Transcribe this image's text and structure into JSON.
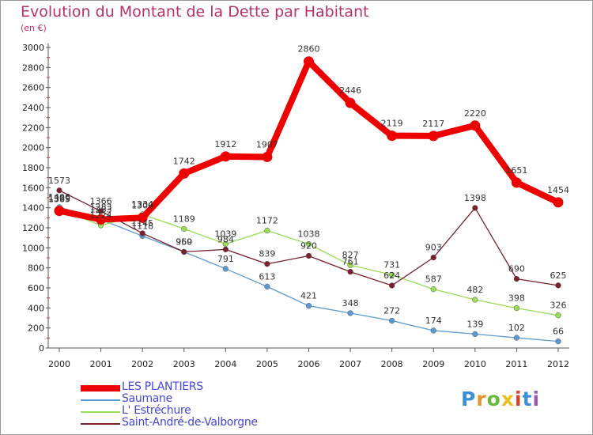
{
  "title": "Evolution du Montant de la Dette par Habitant",
  "subtitle": "(en €)",
  "logo": {
    "letters": [
      "P",
      "r",
      "o",
      "x",
      "i",
      "t",
      "i"
    ],
    "colors": [
      "#3b8fd6",
      "#e8952a",
      "#6bb83a",
      "#e8c020",
      "#d9432e",
      "#3b8fd6",
      "#9b59b6"
    ]
  },
  "chart_data": {
    "type": "line",
    "title": "Evolution du Montant de la Dette par Habitant",
    "ylabel": "(en €)",
    "xlabel": "",
    "x": [
      "2000",
      "2001",
      "2002",
      "2003",
      "2004",
      "2005",
      "2006",
      "2007",
      "2008",
      "2009",
      "2010",
      "2011",
      "2012"
    ],
    "ylim": [
      0,
      3000
    ],
    "yticks": [
      "0",
      "200",
      "400",
      "600",
      "800",
      "1000",
      "1200",
      "1400",
      "1600",
      "1800",
      "2000",
      "2200",
      "2400",
      "2600",
      "2800",
      "3000"
    ],
    "grid": false,
    "legend_position": "bottom-left",
    "series": [
      {
        "name": "LES PLANTIERS",
        "color": "#ee0000",
        "values": [
          1369,
          1283,
          1300,
          1742,
          1912,
          1907,
          2860,
          2446,
          2119,
          2117,
          2220,
          1651,
          1454
        ],
        "labels": [
          "1369",
          "1283",
          "1300",
          "1742",
          "1912",
          "1907",
          "2860",
          "2446",
          "2119",
          "2117",
          "2220",
          "1651",
          "1454"
        ]
      },
      {
        "name": "Saumane",
        "color": "#5b9bd5",
        "values": [
          1406,
          1283,
          1118,
          959,
          791,
          613,
          421,
          348,
          272,
          174,
          139,
          102,
          66
        ],
        "labels": [
          "1406",
          "1283",
          "1118",
          "959",
          "791",
          "613",
          "421",
          "348",
          "272",
          "174",
          "139",
          "102",
          "66"
        ]
      },
      {
        "name": "L' Estréchure",
        "color": "#99dd55",
        "values": [
          1385,
          1224,
          1334,
          1189,
          1039,
          1172,
          1038,
          827,
          731,
          587,
          482,
          398,
          326
        ],
        "labels": [
          "1385",
          "1224",
          "1334",
          "1189",
          "1039",
          "1172",
          "1038",
          "827",
          "731",
          "587",
          "482",
          "398",
          "326"
        ]
      },
      {
        "name": "Saint-André-de-Valborgne",
        "color": "#7a1f2b",
        "values": [
          1573,
          1366,
          1145,
          960,
          984,
          839,
          920,
          761,
          624,
          903,
          1398,
          690,
          625
        ],
        "labels": [
          "1573",
          "1366",
          "1145",
          "960",
          "984",
          "839",
          "920",
          "761",
          "624",
          "903",
          "1398",
          "690",
          "625"
        ]
      }
    ]
  }
}
